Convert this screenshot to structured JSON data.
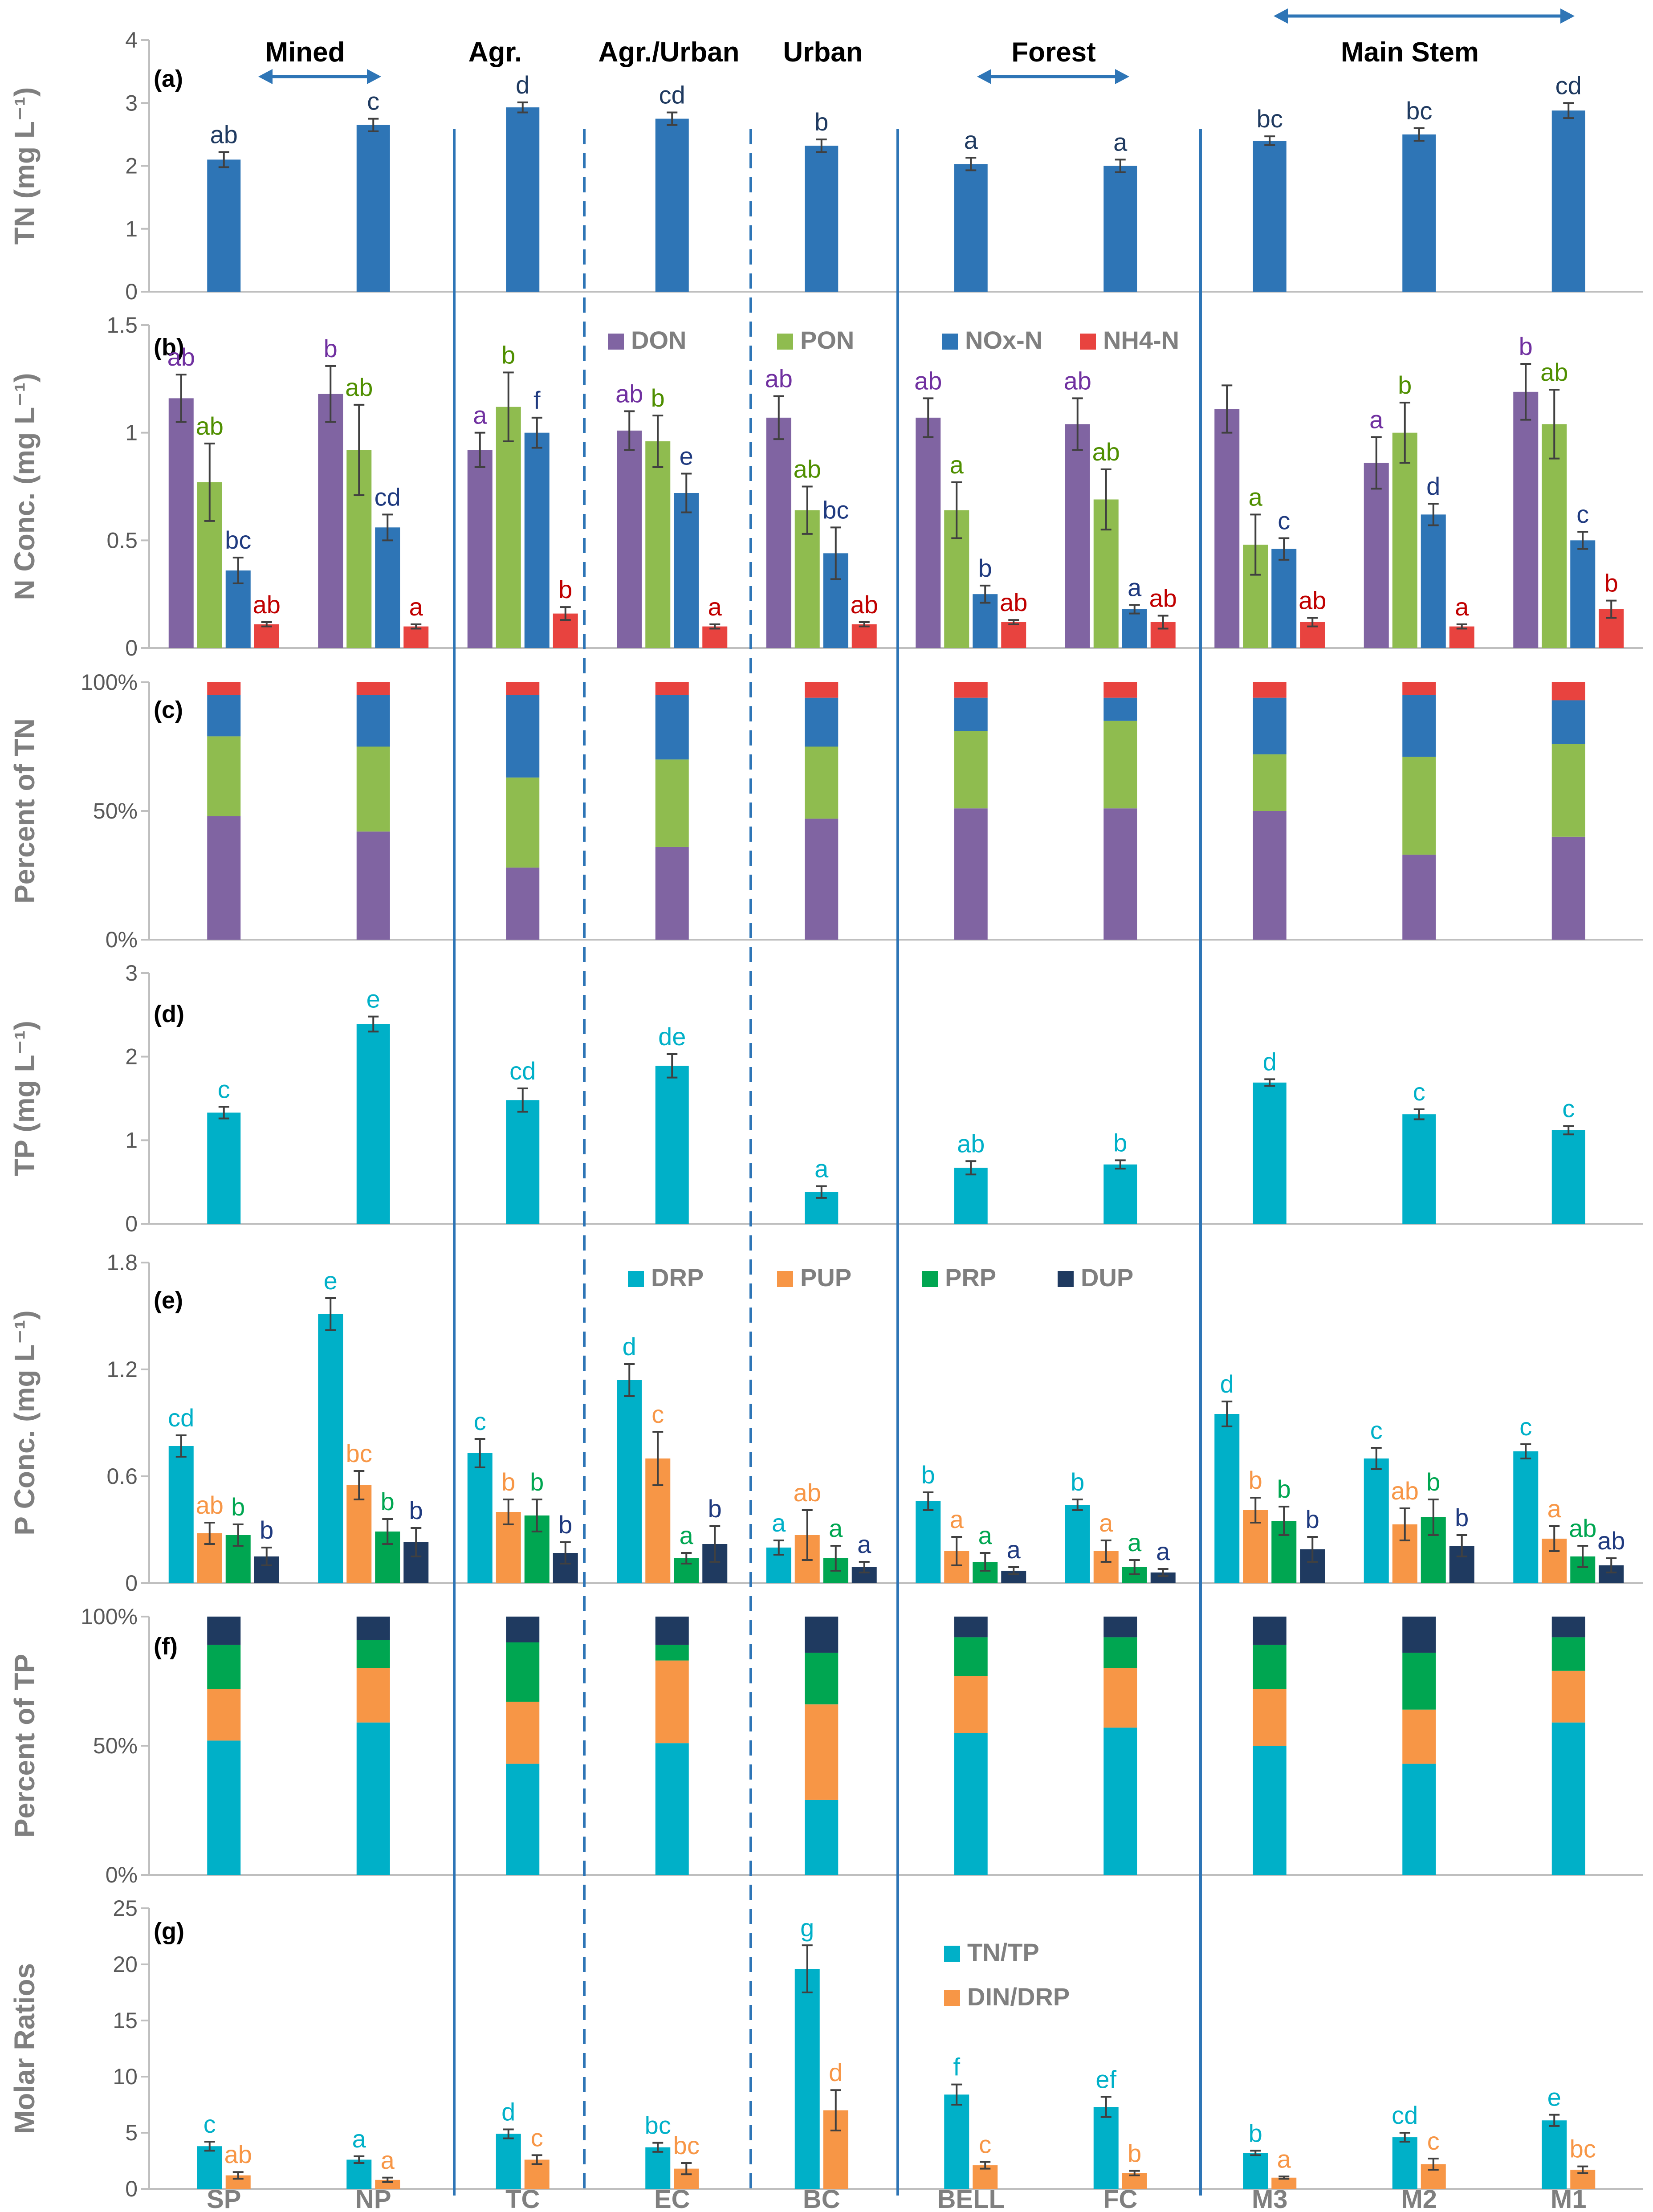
{
  "sites": [
    "SP",
    "NP",
    "TC",
    "EC",
    "BC",
    "BELL",
    "FC",
    "M3",
    "M2",
    "M1"
  ],
  "groups": [
    "Mined",
    "Agr.",
    "Agr./Urban",
    "Urban",
    "Forest",
    "Main Stem"
  ],
  "colors": {
    "tn": "#2e75b6",
    "don": "#8064a2",
    "pon": "#8fbc4f",
    "nox": "#2e75b6",
    "nh4": "#e8433f",
    "tp": "#00b0c8",
    "drp": "#00b0c8",
    "pup": "#f79646",
    "prp": "#00a651",
    "dup": "#1f3a60",
    "sig_don": "#7030a0",
    "sig_pon": "#4f8f00",
    "sig_nox": "#1f3a7f",
    "sig_nh4": "#c00000",
    "sig_drp": "#00b0c8",
    "sig_pup": "#f79646",
    "sig_prp": "#00a651",
    "sig_dup": "#1f3a7f",
    "arrow": "#2e75b6",
    "axis": "#bfbfbf"
  },
  "chart_data": [
    {
      "id": "a",
      "panel_label": "(a)",
      "type": "bar",
      "ylabel": "TN (mg L⁻¹)",
      "ylim": [
        0,
        4
      ],
      "yticks": [
        "0",
        "1",
        "2",
        "3",
        "4"
      ],
      "categories": [
        "SP",
        "NP",
        "TC",
        "EC",
        "BC",
        "BELL",
        "FC",
        "M3",
        "M2",
        "M1"
      ],
      "series": [
        {
          "name": "TN",
          "values": [
            2.1,
            2.65,
            2.93,
            2.75,
            2.32,
            2.03,
            2.0,
            2.4,
            2.5,
            2.88
          ],
          "errors": [
            0.12,
            0.1,
            0.08,
            0.1,
            0.1,
            0.1,
            0.1,
            0.07,
            0.1,
            0.12
          ],
          "labels": [
            "ab",
            "c",
            "d",
            "cd",
            "b",
            "a",
            "a",
            "bc",
            "bc",
            "cd"
          ]
        }
      ]
    },
    {
      "id": "b",
      "panel_label": "(b)",
      "type": "bar",
      "ylabel": "N Conc. (mg L⁻¹)",
      "ylim": [
        0,
        1.5
      ],
      "yticks": [
        "0",
        "0.5",
        "1",
        "1.5"
      ],
      "legend": [
        "DON",
        "PON",
        "NOx-N",
        "NH4-N"
      ],
      "categories": [
        "SP",
        "NP",
        "TC",
        "EC",
        "BC",
        "BELL",
        "FC",
        "M3",
        "M2",
        "M1"
      ],
      "series": [
        {
          "name": "DON",
          "values": [
            1.16,
            1.18,
            0.92,
            1.01,
            1.07,
            1.07,
            1.04,
            1.11,
            0.86,
            1.19
          ],
          "errors": [
            0.11,
            0.13,
            0.08,
            0.09,
            0.1,
            0.09,
            0.12,
            0.11,
            0.12,
            0.13
          ],
          "labels": [
            "ab",
            "b",
            "a",
            "ab",
            "ab",
            "ab",
            "ab",
            "",
            "a",
            "b"
          ]
        },
        {
          "name": "PON",
          "values": [
            0.77,
            0.92,
            1.12,
            0.96,
            0.64,
            0.64,
            0.69,
            0.48,
            1.0,
            1.04
          ],
          "errors": [
            0.18,
            0.21,
            0.16,
            0.12,
            0.11,
            0.13,
            0.14,
            0.14,
            0.14,
            0.16
          ],
          "labels": [
            "ab",
            "ab",
            "b",
            "b",
            "ab",
            "a",
            "ab",
            "a",
            "b",
            "ab"
          ]
        },
        {
          "name": "NOx-N",
          "values": [
            0.36,
            0.56,
            1.0,
            0.72,
            0.44,
            0.25,
            0.18,
            0.46,
            0.62,
            0.5
          ],
          "errors": [
            0.06,
            0.06,
            0.07,
            0.09,
            0.12,
            0.04,
            0.02,
            0.05,
            0.05,
            0.04
          ],
          "labels": [
            "bc",
            "cd",
            "f",
            "e",
            "bc",
            "b",
            "a",
            "c",
            "d",
            "c"
          ]
        },
        {
          "name": "NH4-N",
          "values": [
            0.11,
            0.1,
            0.16,
            0.1,
            0.11,
            0.12,
            0.12,
            0.12,
            0.1,
            0.18
          ],
          "errors": [
            0.01,
            0.01,
            0.03,
            0.01,
            0.01,
            0.01,
            0.03,
            0.02,
            0.01,
            0.04
          ],
          "labels": [
            "ab",
            "a",
            "b",
            "a",
            "ab",
            "ab",
            "ab",
            "ab",
            "a",
            "b"
          ]
        }
      ]
    },
    {
      "id": "c",
      "panel_label": "(c)",
      "type": "stacked-bar",
      "ylabel": "Percent of TN",
      "ylim": [
        0,
        100
      ],
      "yticks": [
        "0%",
        "50%",
        "100%"
      ],
      "categories": [
        "SP",
        "NP",
        "TC",
        "EC",
        "BC",
        "BELL",
        "FC",
        "M3",
        "M2",
        "M1"
      ],
      "series": [
        {
          "name": "DON",
          "values": [
            48,
            42,
            28,
            36,
            47,
            51,
            51,
            50,
            33,
            40
          ]
        },
        {
          "name": "PON",
          "values": [
            31,
            33,
            35,
            34,
            28,
            30,
            34,
            22,
            38,
            36
          ]
        },
        {
          "name": "NOx-N",
          "values": [
            16,
            20,
            32,
            25,
            19,
            13,
            9,
            22,
            24,
            17
          ]
        },
        {
          "name": "NH4-N",
          "values": [
            5,
            5,
            5,
            5,
            6,
            6,
            6,
            6,
            5,
            7
          ]
        }
      ]
    },
    {
      "id": "d",
      "panel_label": "(d)",
      "type": "bar",
      "ylabel": "TP (mg L⁻¹)",
      "ylim": [
        0,
        3
      ],
      "yticks": [
        "0",
        "1",
        "2",
        "3"
      ],
      "categories": [
        "SP",
        "NP",
        "TC",
        "EC",
        "BC",
        "BELL",
        "FC",
        "M3",
        "M2",
        "M1"
      ],
      "series": [
        {
          "name": "TP",
          "values": [
            1.33,
            2.39,
            1.48,
            1.89,
            0.38,
            0.67,
            0.71,
            1.69,
            1.31,
            1.12
          ],
          "errors": [
            0.07,
            0.09,
            0.14,
            0.14,
            0.07,
            0.08,
            0.05,
            0.04,
            0.06,
            0.05
          ],
          "labels": [
            "c",
            "e",
            "cd",
            "de",
            "a",
            "ab",
            "b",
            "d",
            "c",
            "c"
          ]
        }
      ]
    },
    {
      "id": "e",
      "panel_label": "(e)",
      "type": "bar",
      "ylabel": "P Conc. (mg L⁻¹)",
      "ylim": [
        0,
        1.8
      ],
      "yticks": [
        "0",
        "0.6",
        "1.2",
        "1.8"
      ],
      "legend": [
        "DRP",
        "PUP",
        "PRP",
        "DUP"
      ],
      "categories": [
        "SP",
        "NP",
        "TC",
        "EC",
        "BC",
        "BELL",
        "FC",
        "M3",
        "M2",
        "M1"
      ],
      "series": [
        {
          "name": "DRP",
          "values": [
            0.77,
            1.51,
            0.73,
            1.14,
            0.2,
            0.46,
            0.44,
            0.95,
            0.7,
            0.74
          ],
          "errors": [
            0.06,
            0.09,
            0.08,
            0.09,
            0.04,
            0.05,
            0.03,
            0.07,
            0.06,
            0.04
          ],
          "labels": [
            "cd",
            "e",
            "c",
            "d",
            "a",
            "b",
            "b",
            "d",
            "c",
            "c"
          ]
        },
        {
          "name": "PUP",
          "values": [
            0.28,
            0.55,
            0.4,
            0.7,
            0.27,
            0.18,
            0.18,
            0.41,
            0.33,
            0.25
          ],
          "errors": [
            0.06,
            0.08,
            0.07,
            0.15,
            0.14,
            0.08,
            0.06,
            0.07,
            0.09,
            0.07
          ],
          "labels": [
            "ab",
            "bc",
            "b",
            "c",
            "ab",
            "a",
            "a",
            "b",
            "ab",
            "a"
          ]
        },
        {
          "name": "PRP",
          "values": [
            0.27,
            0.29,
            0.38,
            0.14,
            0.14,
            0.12,
            0.09,
            0.35,
            0.37,
            0.15
          ],
          "errors": [
            0.06,
            0.07,
            0.09,
            0.03,
            0.07,
            0.05,
            0.04,
            0.08,
            0.1,
            0.06
          ],
          "labels": [
            "b",
            "b",
            "b",
            "a",
            "a",
            "a",
            "a",
            "b",
            "b",
            "ab"
          ]
        },
        {
          "name": "DUP",
          "values": [
            0.15,
            0.23,
            0.17,
            0.22,
            0.09,
            0.07,
            0.06,
            0.19,
            0.21,
            0.1
          ],
          "errors": [
            0.05,
            0.08,
            0.06,
            0.1,
            0.03,
            0.02,
            0.02,
            0.07,
            0.06,
            0.04
          ],
          "labels": [
            "b",
            "b",
            "b",
            "b",
            "a",
            "a",
            "a",
            "b",
            "b",
            "ab"
          ]
        }
      ]
    },
    {
      "id": "f",
      "panel_label": "(f)",
      "type": "stacked-bar",
      "ylabel": "Percent of TP",
      "ylim": [
        0,
        100
      ],
      "yticks": [
        "0%",
        "50%",
        "100%"
      ],
      "categories": [
        "SP",
        "NP",
        "TC",
        "EC",
        "BC",
        "BELL",
        "FC",
        "M3",
        "M2",
        "M1"
      ],
      "series": [
        {
          "name": "DRP",
          "values": [
            52,
            59,
            43,
            51,
            29,
            55,
            57,
            50,
            43,
            59
          ]
        },
        {
          "name": "PUP",
          "values": [
            20,
            21,
            24,
            32,
            37,
            22,
            23,
            22,
            21,
            20
          ]
        },
        {
          "name": "PRP",
          "values": [
            17,
            11,
            23,
            6,
            20,
            15,
            12,
            17,
            22,
            13
          ]
        },
        {
          "name": "DUP",
          "values": [
            11,
            9,
            10,
            11,
            14,
            8,
            8,
            11,
            14,
            8
          ]
        }
      ]
    },
    {
      "id": "g",
      "panel_label": "(g)",
      "type": "bar",
      "ylabel": "Molar Ratios",
      "ylim": [
        0,
        25
      ],
      "yticks": [
        "0",
        "5",
        "10",
        "15",
        "20",
        "25"
      ],
      "legend": [
        "TN/TP",
        "DIN/DRP"
      ],
      "categories": [
        "SP",
        "NP",
        "TC",
        "EC",
        "BC",
        "BELL",
        "FC",
        "M3",
        "M2",
        "M1"
      ],
      "series": [
        {
          "name": "TN/TP",
          "values": [
            3.8,
            2.6,
            4.9,
            3.7,
            19.6,
            8.4,
            7.3,
            3.2,
            4.6,
            6.1
          ],
          "errors": [
            0.4,
            0.3,
            0.4,
            0.4,
            2.1,
            0.9,
            0.9,
            0.2,
            0.4,
            0.5
          ],
          "labels": [
            "c",
            "a",
            "d",
            "bc",
            "g",
            "f",
            "ef",
            "b",
            "cd",
            "e"
          ]
        },
        {
          "name": "DIN/DRP",
          "values": [
            1.2,
            0.8,
            2.6,
            1.8,
            7.0,
            2.1,
            1.4,
            1.0,
            2.2,
            1.7
          ],
          "errors": [
            0.3,
            0.2,
            0.4,
            0.5,
            1.8,
            0.3,
            0.2,
            0.1,
            0.5,
            0.3
          ],
          "labels": [
            "ab",
            "a",
            "c",
            "bc",
            "d",
            "c",
            "b",
            "a",
            "c",
            "bc"
          ]
        }
      ]
    }
  ]
}
